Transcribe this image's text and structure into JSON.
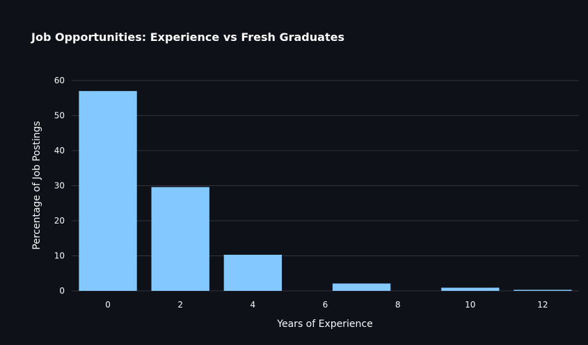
{
  "chart_data": {
    "type": "bar",
    "title": "Job Opportunities: Experience vs Fresh Graduates",
    "xlabel": "Years of Experience",
    "ylabel": "Percentage of Job Postings",
    "x": [
      0,
      2,
      4,
      6,
      7,
      10,
      12
    ],
    "values": [
      57,
      29.6,
      10.3,
      0,
      2.1,
      0.9,
      0.3
    ],
    "xlim": [
      -1,
      13
    ],
    "ylim": [
      0,
      60
    ],
    "xticks": [
      0,
      2,
      4,
      6,
      8,
      10,
      12
    ],
    "yticks": [
      0,
      10,
      20,
      30,
      40,
      50,
      60
    ],
    "grid": true,
    "legend": "none",
    "bar_color": "#83c9ff",
    "background": "#0e1117",
    "grid_color": "#31333f"
  }
}
